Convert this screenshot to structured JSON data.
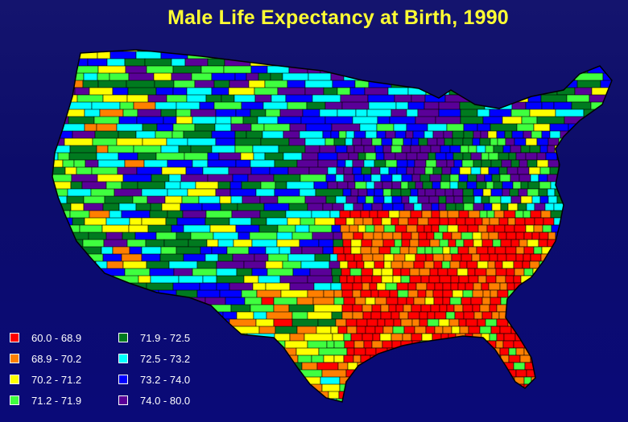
{
  "title": "Male Life Expectancy at Birth, 1990",
  "legend": {
    "items": [
      {
        "label": "60.0 - 68.9",
        "color": "#ff0000"
      },
      {
        "label": "68.9 - 70.2",
        "color": "#ff7f00"
      },
      {
        "label": "70.2 - 71.2",
        "color": "#ffff00"
      },
      {
        "label": "71.2 - 71.9",
        "color": "#3fff3f"
      },
      {
        "label": "71.9 - 72.5",
        "color": "#007a1f"
      },
      {
        "label": "72.5 - 73.2",
        "color": "#00ffff"
      },
      {
        "label": "73.2 - 74.0",
        "color": "#0000ff"
      },
      {
        "label": "74.0 - 80.0",
        "color": "#5a0098"
      }
    ]
  }
}
